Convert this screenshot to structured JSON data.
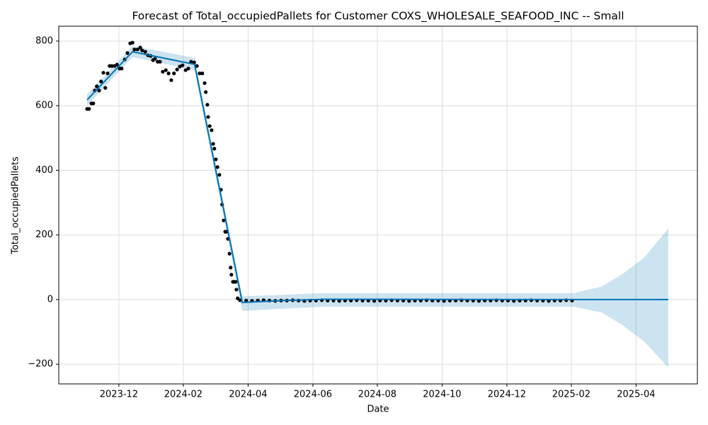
{
  "chart_data": {
    "type": "line",
    "title": "Forecast of Total_occupiedPallets for Customer COXS_WHOLESALE_SEAFOOD_INC -- Small",
    "xlabel": "Date",
    "ylabel": "Total_occupiedPallets",
    "xlim": [
      2023.762,
      2025.408
    ],
    "ylim": [
      -261,
      846
    ],
    "grid": true,
    "xticks": [
      {
        "value": 2023.917,
        "label": "2023-12"
      },
      {
        "value": 2024.083,
        "label": "2024-02"
      },
      {
        "value": 2024.25,
        "label": "2024-04"
      },
      {
        "value": 2024.417,
        "label": "2024-06"
      },
      {
        "value": 2024.583,
        "label": "2024-08"
      },
      {
        "value": 2024.75,
        "label": "2024-10"
      },
      {
        "value": 2024.917,
        "label": "2024-12"
      },
      {
        "value": 2025.083,
        "label": "2025-02"
      },
      {
        "value": 2025.25,
        "label": "2025-04"
      }
    ],
    "yticks": [
      {
        "value": -200,
        "label": "−200"
      },
      0,
      200,
      400,
      600,
      800
    ],
    "forecast": {
      "color": "#0072B2",
      "x": [
        2023.835,
        2023.952,
        2024.112,
        2024.235,
        2024.34,
        2024.45,
        2025.089,
        2025.161,
        2025.216,
        2025.271,
        2025.333
      ],
      "values": [
        618,
        767,
        728,
        -9,
        -3,
        1,
        0,
        0,
        0,
        0,
        0
      ],
      "upper": [
        635,
        785,
        748,
        10,
        15,
        20,
        20,
        40,
        80,
        130,
        220
      ],
      "lower": [
        600,
        750,
        710,
        -35,
        -28,
        -22,
        -22,
        -40,
        -80,
        -130,
        -210
      ]
    },
    "observed": {
      "color": "#000000",
      "x": [
        2023.835,
        2023.84,
        2023.846,
        2023.851,
        2023.855,
        2023.86,
        2023.866,
        2023.871,
        2023.877,
        2023.882,
        2023.888,
        2023.893,
        2023.899,
        2023.906,
        2023.912,
        2023.919,
        2023.924,
        2023.932,
        2023.939,
        2023.946,
        2023.952,
        2023.957,
        2023.965,
        2023.972,
        2023.977,
        2023.985,
        2023.992,
        2023.999,
        2024.005,
        2024.01,
        2024.017,
        2024.023,
        2024.03,
        2024.038,
        2024.045,
        2024.052,
        2024.059,
        2024.067,
        2024.074,
        2024.081,
        2024.089,
        2024.096,
        2024.103,
        2024.111,
        2024.118,
        2024.125,
        2024.132,
        2024.138,
        2024.141,
        2024.145,
        2024.147,
        2024.151,
        2024.156,
        2024.16,
        2024.163,
        2024.167,
        2024.171,
        2024.176,
        2024.18,
        2024.183,
        2024.187,
        2024.191,
        2024.194,
        2024.198,
        2024.202,
        2024.205,
        2024.207,
        2024.211,
        2024.214,
        2024.218,
        2024.22,
        2024.223,
        2024.229,
        2024.245,
        2024.26,
        2024.275,
        2024.29,
        2024.305,
        2024.32,
        2024.335,
        2024.35,
        2024.365,
        2024.38,
        2024.395,
        2024.41,
        2024.425,
        2024.44,
        2024.455,
        2024.47,
        2024.485,
        2024.5,
        2024.515,
        2024.53,
        2024.545,
        2024.56,
        2024.575,
        2024.59,
        2024.605,
        2024.62,
        2024.635,
        2024.65,
        2024.665,
        2024.68,
        2024.695,
        2024.71,
        2024.725,
        2024.74,
        2024.755,
        2024.77,
        2024.785,
        2024.8,
        2024.815,
        2024.83,
        2024.845,
        2024.86,
        2024.875,
        2024.89,
        2024.905,
        2024.92,
        2024.935,
        2024.95,
        2024.965,
        2024.98,
        2024.995,
        2025.01,
        2025.025,
        2025.04,
        2025.055,
        2025.07,
        2025.085
      ],
      "values": [
        590,
        590,
        607,
        607,
        647,
        660,
        647,
        675,
        702,
        655,
        700,
        723,
        723,
        723,
        727,
        715,
        715,
        743,
        763,
        793,
        795,
        774,
        774,
        780,
        771,
        767,
        756,
        754,
        741,
        745,
        736,
        736,
        705,
        710,
        700,
        679,
        700,
        712,
        721,
        725,
        710,
        715,
        736,
        734,
        723,
        700,
        700,
        670,
        642,
        603,
        565,
        537,
        524,
        482,
        467,
        434,
        410,
        386,
        340,
        294,
        245,
        210,
        210,
        188,
        142,
        99,
        77,
        55,
        55,
        55,
        31,
        4,
        -2,
        -3,
        -4,
        -3,
        -2,
        -3,
        -4,
        -3,
        -3,
        -2,
        -3,
        -4,
        -3,
        -3,
        -2,
        -3,
        -3,
        -4,
        -3,
        -3,
        -2,
        -3,
        -3,
        -4,
        -3,
        -3,
        -2,
        -3,
        -3,
        -4,
        -3,
        -3,
        -2,
        -3,
        -3,
        -4,
        -3,
        -3,
        -2,
        -3,
        -3,
        -4,
        -3,
        -3,
        -2,
        -3,
        -3,
        -4,
        -3,
        -3,
        -2,
        -3,
        -3,
        -4,
        -3,
        -3,
        -2,
        -3
      ]
    }
  }
}
